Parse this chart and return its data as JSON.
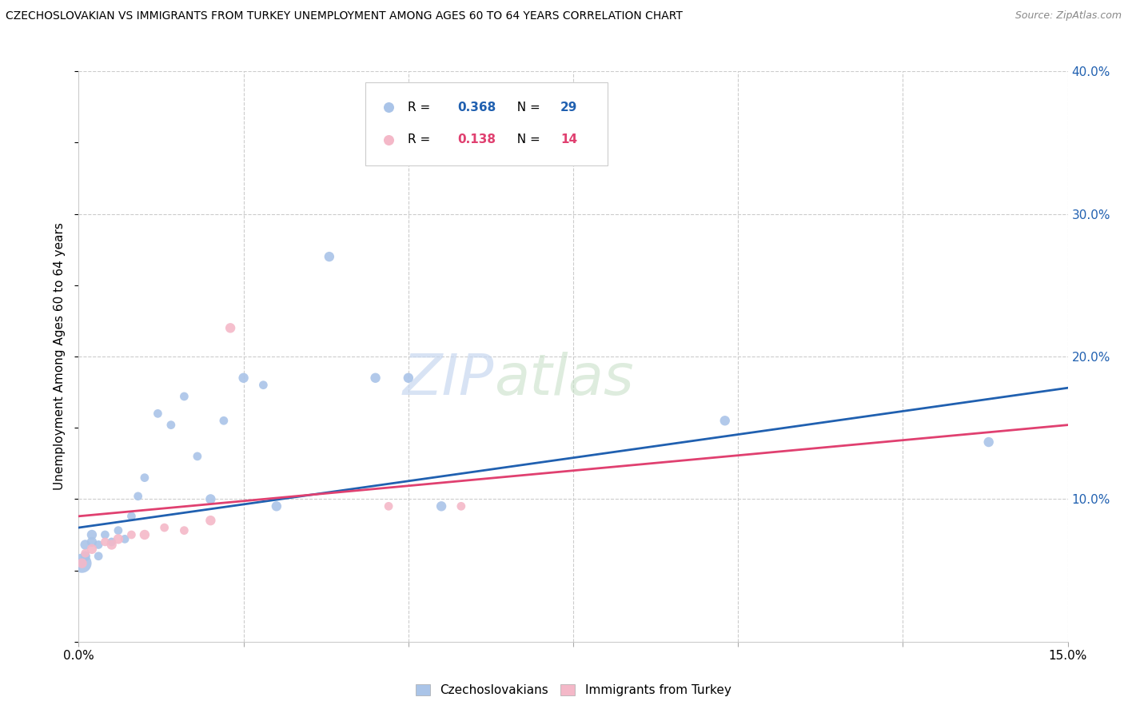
{
  "title": "CZECHOSLOVAKIAN VS IMMIGRANTS FROM TURKEY UNEMPLOYMENT AMONG AGES 60 TO 64 YEARS CORRELATION CHART",
  "source": "Source: ZipAtlas.com",
  "ylabel": "Unemployment Among Ages 60 to 64 years",
  "xlim": [
    0,
    0.15
  ],
  "ylim": [
    0,
    0.4
  ],
  "xticks": [
    0.0,
    0.025,
    0.05,
    0.075,
    0.1,
    0.125,
    0.15
  ],
  "ytick_right": [
    0.1,
    0.2,
    0.3,
    0.4
  ],
  "ytick_right_labels": [
    "10.0%",
    "20.0%",
    "30.0%",
    "40.0%"
  ],
  "legend_blue_r": "0.368",
  "legend_blue_n": "29",
  "legend_pink_r": "0.138",
  "legend_pink_n": "14",
  "blue_color": "#aac4e8",
  "pink_color": "#f4b8c8",
  "blue_line_color": "#2060b0",
  "pink_line_color": "#e04070",
  "watermark_zip": "ZIP",
  "watermark_atlas": "atlas",
  "czechoslovakians_x": [
    0.0005,
    0.001,
    0.001,
    0.002,
    0.002,
    0.003,
    0.003,
    0.004,
    0.005,
    0.006,
    0.007,
    0.008,
    0.009,
    0.01,
    0.012,
    0.014,
    0.016,
    0.018,
    0.02,
    0.022,
    0.025,
    0.028,
    0.03,
    0.038,
    0.045,
    0.05,
    0.055,
    0.098,
    0.138
  ],
  "czechoslovakians_y": [
    0.055,
    0.06,
    0.068,
    0.07,
    0.075,
    0.06,
    0.068,
    0.075,
    0.07,
    0.078,
    0.072,
    0.088,
    0.102,
    0.115,
    0.16,
    0.152,
    0.172,
    0.13,
    0.1,
    0.155,
    0.185,
    0.18,
    0.095,
    0.27,
    0.185,
    0.185,
    0.095,
    0.155,
    0.14
  ],
  "czechoslovakians_size": [
    300,
    80,
    80,
    80,
    80,
    60,
    60,
    60,
    60,
    60,
    60,
    60,
    60,
    60,
    60,
    60,
    60,
    60,
    80,
    60,
    80,
    60,
    80,
    80,
    80,
    80,
    80,
    80,
    80
  ],
  "turkey_x": [
    0.0005,
    0.001,
    0.002,
    0.004,
    0.005,
    0.006,
    0.008,
    0.01,
    0.013,
    0.016,
    0.02,
    0.023,
    0.047,
    0.058
  ],
  "turkey_y": [
    0.055,
    0.062,
    0.065,
    0.07,
    0.068,
    0.072,
    0.075,
    0.075,
    0.08,
    0.078,
    0.085,
    0.22,
    0.095,
    0.095
  ],
  "turkey_size": [
    80,
    60,
    80,
    60,
    80,
    80,
    60,
    80,
    60,
    60,
    80,
    80,
    60,
    60
  ],
  "blue_line_x0": 0.0,
  "blue_line_x1": 0.15,
  "blue_line_y0": 0.08,
  "blue_line_y1": 0.178,
  "pink_line_x0": 0.0,
  "pink_line_x1": 0.15,
  "pink_line_y0": 0.088,
  "pink_line_y1": 0.152,
  "background_color": "#ffffff",
  "grid_color": "#cccccc"
}
